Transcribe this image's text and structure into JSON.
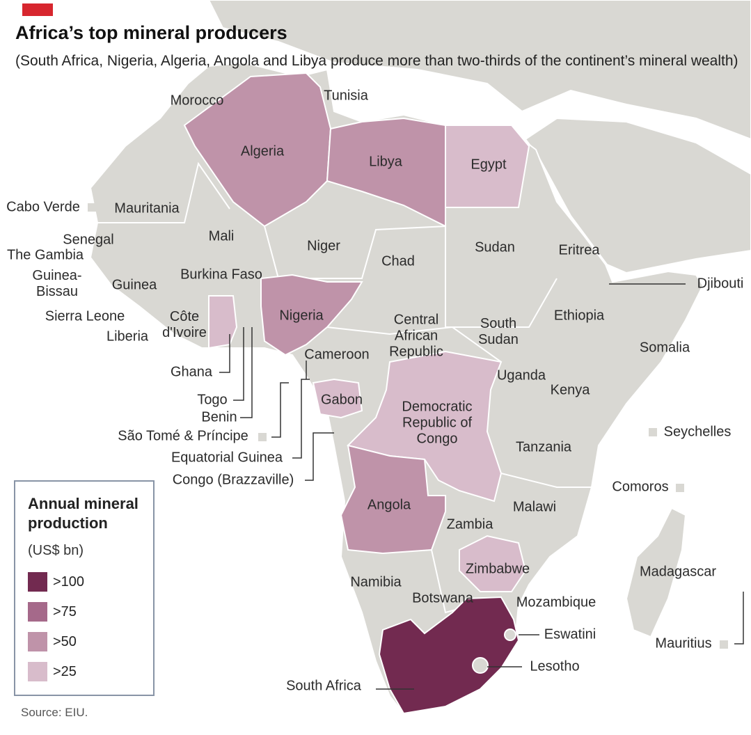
{
  "header": {
    "title": "Africa’s top mineral producers",
    "subtitle": "(South Africa, Nigeria, Algeria, Angola and Libya produce more than two-thirds of the continent’s mineral wealth)"
  },
  "legend": {
    "title": "Annual mineral production",
    "unit": "(US$ bn)",
    "classes": [
      {
        "label": ">100",
        "color": "#722a50"
      },
      {
        "label": ">75",
        "color": "#a5698a"
      },
      {
        "label": ">50",
        "color": "#bf93a9"
      },
      {
        "label": ">25",
        "color": "#d8bccb"
      }
    ]
  },
  "countries": [
    {
      "name": "Morocco"
    },
    {
      "name": "Tunisia"
    },
    {
      "name": "Algeria",
      "color": "#bf93a9"
    },
    {
      "name": "Libya",
      "color": "#bf93a9"
    },
    {
      "name": "Egypt",
      "color": "#d8bccb"
    },
    {
      "name": "Cabo Verde"
    },
    {
      "name": "Mauritania"
    },
    {
      "name": "Mali"
    },
    {
      "name": "Niger"
    },
    {
      "name": "Senegal"
    },
    {
      "name": "The Gambia"
    },
    {
      "name": "Guinea-Bissau"
    },
    {
      "name": "Guinea"
    },
    {
      "name": "Burkina Faso"
    },
    {
      "name": "Sierra Leone"
    },
    {
      "name": "Liberia"
    },
    {
      "name": "Côte d'Ivoire"
    },
    {
      "name": "Nigeria",
      "color": "#bf93a9"
    },
    {
      "name": "Chad"
    },
    {
      "name": "Sudan"
    },
    {
      "name": "Eritrea"
    },
    {
      "name": "Djibouti"
    },
    {
      "name": "Ethiopia"
    },
    {
      "name": "Central African Republic"
    },
    {
      "name": "South Sudan"
    },
    {
      "name": "Somalia"
    },
    {
      "name": "Cameroon"
    },
    {
      "name": "Ghana",
      "color": "#d8bccb"
    },
    {
      "name": "Uganda"
    },
    {
      "name": "Kenya"
    },
    {
      "name": "Gabon",
      "color": "#d8bccb"
    },
    {
      "name": "Togo"
    },
    {
      "name": "Benin"
    },
    {
      "name": "São Tomé & Príncipe"
    },
    {
      "name": "Democratic Republic of Congo",
      "color": "#d8bccb"
    },
    {
      "name": "Seychelles"
    },
    {
      "name": "Tanzania"
    },
    {
      "name": "Equatorial Guinea"
    },
    {
      "name": "Congo (Brazzaville)"
    },
    {
      "name": "Comoros"
    },
    {
      "name": "Angola",
      "color": "#bf93a9"
    },
    {
      "name": "Malawi"
    },
    {
      "name": "Zambia"
    },
    {
      "name": "Zimbabwe",
      "color": "#d8bccb"
    },
    {
      "name": "Madagascar"
    },
    {
      "name": "Namibia"
    },
    {
      "name": "Botswana"
    },
    {
      "name": "Mozambique"
    },
    {
      "name": "Eswatini"
    },
    {
      "name": "Mauritius"
    },
    {
      "name": "Lesotho"
    },
    {
      "name": "South Africa",
      "color": "#722a50"
    }
  ],
  "source": "Source: EIU."
}
